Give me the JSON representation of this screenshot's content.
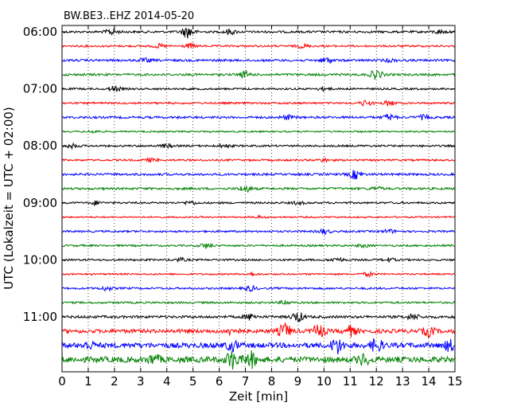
{
  "chart_data": {
    "type": "line",
    "title": "BW.BE3..EHZ 2014-05-20",
    "xlabel": "Zeit  [min]",
    "ylabel": "UTC (Lokalzeit = UTC + 02:00)",
    "xlim": [
      0,
      15
    ],
    "x_ticks": [
      "0",
      "1",
      "2",
      "3",
      "4",
      "5",
      "6",
      "7",
      "8",
      "9",
      "10",
      "11",
      "12",
      "13",
      "14",
      "15"
    ],
    "y_tick_labels": [
      "06:00",
      "07:00",
      "08:00",
      "09:00",
      "10:00",
      "11:00"
    ],
    "row_interval_min": 15,
    "row_start": "06:00",
    "vertical_grid": "dotted",
    "trace_colors": [
      "#000000",
      "#ff0000",
      "#0000ff",
      "#008000"
    ],
    "rows": [
      {
        "start": "06:00",
        "color": "#000000",
        "amplitude": 0.35,
        "events": [
          {
            "x": 1.9,
            "amp": 0.9
          },
          {
            "x": 4.8,
            "amp": 1.8
          },
          {
            "x": 6.4,
            "amp": 0.7
          },
          {
            "x": 14.4,
            "amp": 0.5
          }
        ]
      },
      {
        "start": "06:15",
        "color": "#ff0000",
        "amplitude": 0.3,
        "events": [
          {
            "x": 3.7,
            "amp": 0.5
          },
          {
            "x": 4.9,
            "amp": 0.6
          },
          {
            "x": 9.2,
            "amp": 0.5
          }
        ]
      },
      {
        "start": "06:30",
        "color": "#0000ff",
        "amplitude": 0.35,
        "events": [
          {
            "x": 3.2,
            "amp": 0.5
          },
          {
            "x": 10.1,
            "amp": 0.8
          },
          {
            "x": 12.5,
            "amp": 0.4
          }
        ]
      },
      {
        "start": "06:45",
        "color": "#008000",
        "amplitude": 0.35,
        "events": [
          {
            "x": 7.0,
            "amp": 0.9
          },
          {
            "x": 12.0,
            "amp": 1.4
          }
        ]
      },
      {
        "start": "07:00",
        "color": "#000000",
        "amplitude": 0.3,
        "events": [
          {
            "x": 2.0,
            "amp": 0.8
          },
          {
            "x": 10.0,
            "amp": 0.5
          }
        ]
      },
      {
        "start": "07:15",
        "color": "#ff0000",
        "amplitude": 0.3,
        "events": [
          {
            "x": 11.6,
            "amp": 0.8
          },
          {
            "x": 12.5,
            "amp": 0.7
          }
        ]
      },
      {
        "start": "07:30",
        "color": "#0000ff",
        "amplitude": 0.35,
        "events": [
          {
            "x": 8.6,
            "amp": 0.6
          },
          {
            "x": 12.5,
            "amp": 0.8
          },
          {
            "x": 13.8,
            "amp": 0.6
          }
        ]
      },
      {
        "start": "07:45",
        "color": "#008000",
        "amplitude": 0.25,
        "events": [
          {
            "x": 1.2,
            "amp": 0.4
          }
        ]
      },
      {
        "start": "08:00",
        "color": "#000000",
        "amplitude": 0.3,
        "events": [
          {
            "x": 0.4,
            "amp": 0.6
          },
          {
            "x": 4.0,
            "amp": 0.5
          },
          {
            "x": 6.2,
            "amp": 0.5
          }
        ]
      },
      {
        "start": "08:15",
        "color": "#ff0000",
        "amplitude": 0.3,
        "events": [
          {
            "x": 3.4,
            "amp": 0.5
          },
          {
            "x": 10.0,
            "amp": 0.4
          }
        ]
      },
      {
        "start": "08:30",
        "color": "#0000ff",
        "amplitude": 0.35,
        "events": [
          {
            "x": 11.2,
            "amp": 1.3
          }
        ]
      },
      {
        "start": "08:45",
        "color": "#008000",
        "amplitude": 0.35,
        "events": [
          {
            "x": 7.0,
            "amp": 0.9
          },
          {
            "x": 12.0,
            "amp": 0.5
          }
        ]
      },
      {
        "start": "09:00",
        "color": "#000000",
        "amplitude": 0.3,
        "events": [
          {
            "x": 1.3,
            "amp": 0.5
          },
          {
            "x": 4.9,
            "amp": 0.5
          },
          {
            "x": 9.0,
            "amp": 0.4
          }
        ]
      },
      {
        "start": "09:15",
        "color": "#ff0000",
        "amplitude": 0.25,
        "events": [
          {
            "x": 7.5,
            "amp": 0.3
          }
        ]
      },
      {
        "start": "09:30",
        "color": "#0000ff",
        "amplitude": 0.3,
        "events": [
          {
            "x": 10.0,
            "amp": 0.7
          },
          {
            "x": 12.5,
            "amp": 0.5
          }
        ]
      },
      {
        "start": "09:45",
        "color": "#008000",
        "amplitude": 0.3,
        "events": [
          {
            "x": 5.5,
            "amp": 0.7
          },
          {
            "x": 11.5,
            "amp": 0.4
          }
        ]
      },
      {
        "start": "10:00",
        "color": "#000000",
        "amplitude": 0.3,
        "events": [
          {
            "x": 4.5,
            "amp": 0.5
          },
          {
            "x": 10.5,
            "amp": 0.6
          },
          {
            "x": 12.5,
            "amp": 0.5
          }
        ]
      },
      {
        "start": "10:15",
        "color": "#ff0000",
        "amplitude": 0.25,
        "events": [
          {
            "x": 7.2,
            "amp": 0.5
          },
          {
            "x": 11.7,
            "amp": 0.6
          }
        ]
      },
      {
        "start": "10:30",
        "color": "#0000ff",
        "amplitude": 0.3,
        "events": [
          {
            "x": 1.7,
            "amp": 0.6
          },
          {
            "x": 7.2,
            "amp": 0.7
          }
        ]
      },
      {
        "start": "10:45",
        "color": "#008000",
        "amplitude": 0.3,
        "events": [
          {
            "x": 8.5,
            "amp": 0.5
          }
        ]
      },
      {
        "start": "11:00",
        "color": "#000000",
        "amplitude": 0.4,
        "events": [
          {
            "x": 7.2,
            "amp": 0.9
          },
          {
            "x": 9.0,
            "amp": 1.5
          },
          {
            "x": 13.4,
            "amp": 0.9
          }
        ]
      },
      {
        "start": "11:15",
        "color": "#ff0000",
        "amplitude": 0.6,
        "events": [
          {
            "x": 6.5,
            "amp": 1.2
          },
          {
            "x": 8.5,
            "amp": 2.2
          },
          {
            "x": 9.8,
            "amp": 2.0
          },
          {
            "x": 11.0,
            "amp": 1.5
          },
          {
            "x": 14.0,
            "amp": 1.4
          }
        ]
      },
      {
        "start": "11:30",
        "color": "#0000ff",
        "amplitude": 0.8,
        "events": [
          {
            "x": 1.0,
            "amp": 1.0
          },
          {
            "x": 6.5,
            "amp": 1.4
          },
          {
            "x": 10.5,
            "amp": 2.2
          },
          {
            "x": 12.0,
            "amp": 1.8
          },
          {
            "x": 14.8,
            "amp": 1.4
          }
        ]
      },
      {
        "start": "11:45",
        "color": "#008000",
        "amplitude": 0.9,
        "events": [
          {
            "x": 3.5,
            "amp": 1.3
          },
          {
            "x": 6.5,
            "amp": 2.6
          },
          {
            "x": 7.2,
            "amp": 2.2
          },
          {
            "x": 11.5,
            "amp": 1.4
          }
        ]
      }
    ]
  }
}
